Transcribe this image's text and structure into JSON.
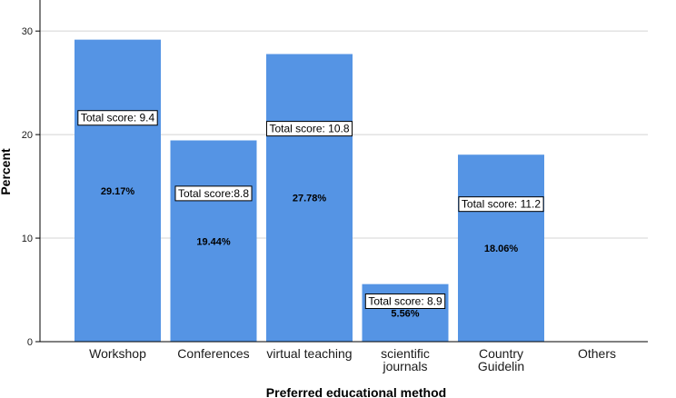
{
  "chart_data": {
    "type": "bar",
    "categories": [
      "Workshop",
      "Conferences",
      "virtual teaching",
      "scientific journals",
      "Country Guidelin",
      "Others"
    ],
    "category_label_lines": [
      [
        "Workshop"
      ],
      [
        "Conferences"
      ],
      [
        "virtual teaching"
      ],
      [
        "scientific",
        "journals"
      ],
      [
        "Country",
        "Guidelin"
      ],
      [
        "Others"
      ]
    ],
    "values": [
      29.17,
      19.44,
      27.78,
      5.56,
      18.06,
      0
    ],
    "data_labels": [
      "29.17%",
      "19.44%",
      "27.78%",
      "5.56%",
      "18.06%",
      ""
    ],
    "annotations": [
      "Total score: 9.4",
      "Total score:8.8",
      "Total score: 10.8",
      "Total score: 8.9",
      "Total score: 11.2",
      ""
    ],
    "xlabel": "Preferred educational method",
    "ylabel": "Percent",
    "ylim": [
      0,
      33
    ],
    "yticks": [
      0,
      10,
      20,
      30
    ],
    "grid": true,
    "colors": {
      "bar": "#5594e4",
      "grid": "#d4d4d4",
      "axis": "#000000"
    }
  }
}
